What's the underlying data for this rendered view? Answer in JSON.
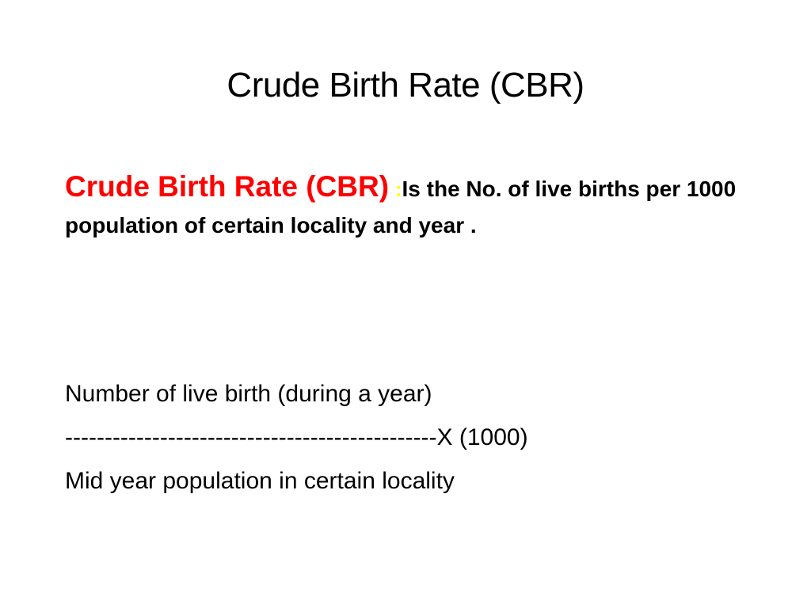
{
  "slide": {
    "title": "Crude Birth Rate (CBR)",
    "definition": {
      "term": "Crude Birth Rate (CBR)",
      "colon": ":",
      "text": "Is the No. of live births per 1000 population of certain  locality and year ."
    },
    "formula": {
      "numerator": "Number of live birth (during a year)",
      "divider": "-----------------------------------------------X (1000)",
      "denominator": "Mid year population in certain locality"
    }
  },
  "colors": {
    "term": "#ff0000",
    "colon": "#ffff00",
    "text": "#000000",
    "background": "#ffffff"
  }
}
